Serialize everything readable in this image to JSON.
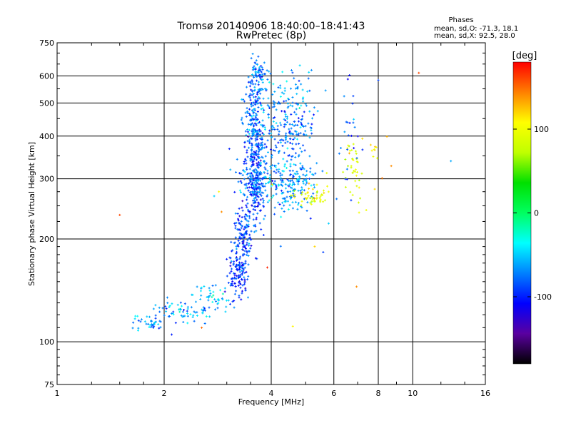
{
  "chart_data": {
    "type": "scatter",
    "title": "Tromsø 20140906 18:40:00–18:41:43",
    "subtitle": "RwPretec (8p)",
    "xlabel": "Frequency [MHz]",
    "ylabel": "Stationary phase Virtual Height [km]",
    "x_scale": "log",
    "y_scale": "log",
    "xlim": [
      1,
      16
    ],
    "ylim": [
      75,
      750
    ],
    "x_ticks": [
      1,
      2,
      4,
      6,
      8,
      10,
      16
    ],
    "x_tick_labels": [
      "1",
      "2",
      "4",
      "6",
      "8",
      "10",
      "16"
    ],
    "y_ticks": [
      75,
      100,
      200,
      300,
      400,
      500,
      600,
      750
    ],
    "y_tick_labels": [
      "75",
      "100",
      "200",
      "300",
      "400",
      "500",
      "600",
      "750"
    ],
    "grid": true,
    "phases_box": {
      "title": "Phases",
      "line1": "mean, sd,O:  -71.3,  18.1",
      "line2": "mean, sd,X:   92.5,  28.0"
    },
    "colorbar": {
      "label": "[deg]",
      "range": [
        -180,
        180
      ],
      "ticks": [
        100,
        0,
        -100
      ],
      "tick_labels": [
        "100",
        "0",
        "-100"
      ],
      "colors": [
        "#000000",
        "#5a00a0",
        "#0000ff",
        "#0080ff",
        "#00ffff",
        "#00ff60",
        "#00e000",
        "#c0ff00",
        "#ffff00",
        "#ff8000",
        "#ff0000"
      ]
    },
    "clusters": [
      {
        "name": "",
        "xc": 1.85,
        "yc": 114,
        "xs": 0.12,
        "ys": 3,
        "n": 40,
        "phase": -70
      },
      {
        "name": "",
        "xc": 2.3,
        "yc": 123,
        "xs": 0.2,
        "ys": 5,
        "n": 60,
        "phase": -60
      },
      {
        "name": "",
        "xc": 2.7,
        "yc": 135,
        "xs": 0.15,
        "ys": 7,
        "n": 45,
        "phase": -55
      },
      {
        "name": "",
        "xc": 3.25,
        "yc": 160,
        "xs": 0.1,
        "ys": 15,
        "n": 130,
        "phase": -95
      },
      {
        "name": "",
        "xc": 3.35,
        "yc": 205,
        "xs": 0.1,
        "ys": 20,
        "n": 110,
        "phase": -90
      },
      {
        "name": "",
        "xc": 3.6,
        "yc": 290,
        "xs": 0.12,
        "ys": 35,
        "n": 220,
        "phase": -85
      },
      {
        "name": "",
        "xc": 3.6,
        "yc": 430,
        "xs": 0.12,
        "ys": 80,
        "n": 260,
        "phase": -80
      },
      {
        "name": "",
        "xc": 3.7,
        "yc": 610,
        "xs": 0.08,
        "ys": 30,
        "n": 60,
        "phase": -75
      },
      {
        "name": "",
        "xc": 4.4,
        "yc": 290,
        "xs": 0.5,
        "ys": 25,
        "n": 200,
        "phase": -65
      },
      {
        "name": "",
        "xc": 4.4,
        "yc": 390,
        "xs": 0.45,
        "ys": 60,
        "n": 200,
        "phase": -75
      },
      {
        "name": "",
        "xc": 4.5,
        "yc": 530,
        "xs": 0.4,
        "ys": 50,
        "n": 70,
        "phase": -60
      },
      {
        "name": "",
        "xc": 5.2,
        "yc": 268,
        "xs": 0.4,
        "ys": 12,
        "n": 50,
        "phase": 95
      },
      {
        "name": "",
        "xc": 6.8,
        "yc": 320,
        "xs": 0.2,
        "ys": 40,
        "n": 40,
        "phase": 90
      },
      {
        "name": "",
        "xc": 6.7,
        "yc": 430,
        "xs": 0.2,
        "ys": 90,
        "n": 25,
        "phase": -85
      },
      {
        "name": "",
        "xc": 7.8,
        "yc": 360,
        "xs": 0.3,
        "ys": 30,
        "n": 12,
        "phase": 110
      }
    ],
    "outliers": [
      {
        "x": 1.5,
        "y": 235,
        "phase": 160
      },
      {
        "x": 2.1,
        "y": 105,
        "phase": -100
      },
      {
        "x": 2.55,
        "y": 110,
        "phase": 150
      },
      {
        "x": 2.85,
        "y": 275,
        "phase": 110
      },
      {
        "x": 2.9,
        "y": 240,
        "phase": 140
      },
      {
        "x": 3.05,
        "y": 367,
        "phase": -100
      },
      {
        "x": 3.9,
        "y": 165,
        "phase": 170
      },
      {
        "x": 4.6,
        "y": 111,
        "phase": 110
      },
      {
        "x": 5.3,
        "y": 190,
        "phase": 120
      },
      {
        "x": 5.6,
        "y": 183,
        "phase": -90
      },
      {
        "x": 5.8,
        "y": 222,
        "phase": -50
      },
      {
        "x": 6.95,
        "y": 145,
        "phase": 140
      },
      {
        "x": 7.4,
        "y": 243,
        "phase": 100
      },
      {
        "x": 8.0,
        "y": 583,
        "phase": -90
      },
      {
        "x": 8.7,
        "y": 327,
        "phase": 140
      },
      {
        "x": 10.4,
        "y": 612,
        "phase": 160
      },
      {
        "x": 12.8,
        "y": 338,
        "phase": -60
      }
    ]
  }
}
